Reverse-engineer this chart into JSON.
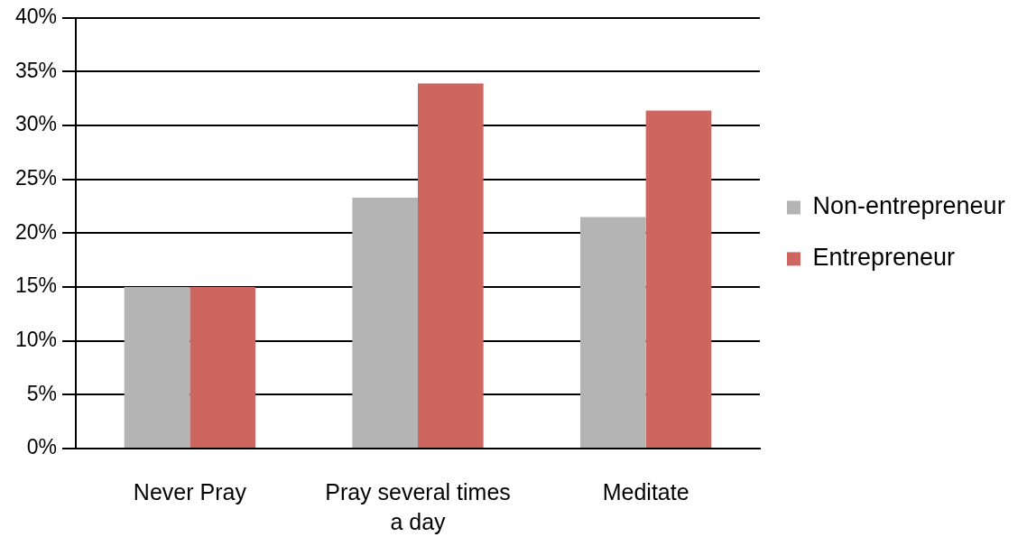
{
  "chart_data": {
    "type": "bar",
    "categories": [
      "Never Pray",
      "Pray several times a day",
      "Meditate"
    ],
    "series": [
      {
        "name": "Non-entrepreneur",
        "color": "#b4b4b4",
        "values": [
          15,
          23.3,
          21.5
        ]
      },
      {
        "name": "Entrepreneur",
        "color": "#cc665f",
        "values": [
          15,
          33.9,
          31.4
        ]
      }
    ],
    "ylim": [
      0,
      40
    ],
    "yticks": [
      {
        "value": 0,
        "label": "0%"
      },
      {
        "value": 5,
        "label": "5%"
      },
      {
        "value": 10,
        "label": "10%"
      },
      {
        "value": 15,
        "label": "15%"
      },
      {
        "value": 20,
        "label": "20%"
      },
      {
        "value": 25,
        "label": "25%"
      },
      {
        "value": 30,
        "label": "30%"
      },
      {
        "value": 35,
        "label": "35%"
      },
      {
        "value": 40,
        "label": "40%"
      }
    ],
    "grid": "y",
    "legend": "right"
  }
}
